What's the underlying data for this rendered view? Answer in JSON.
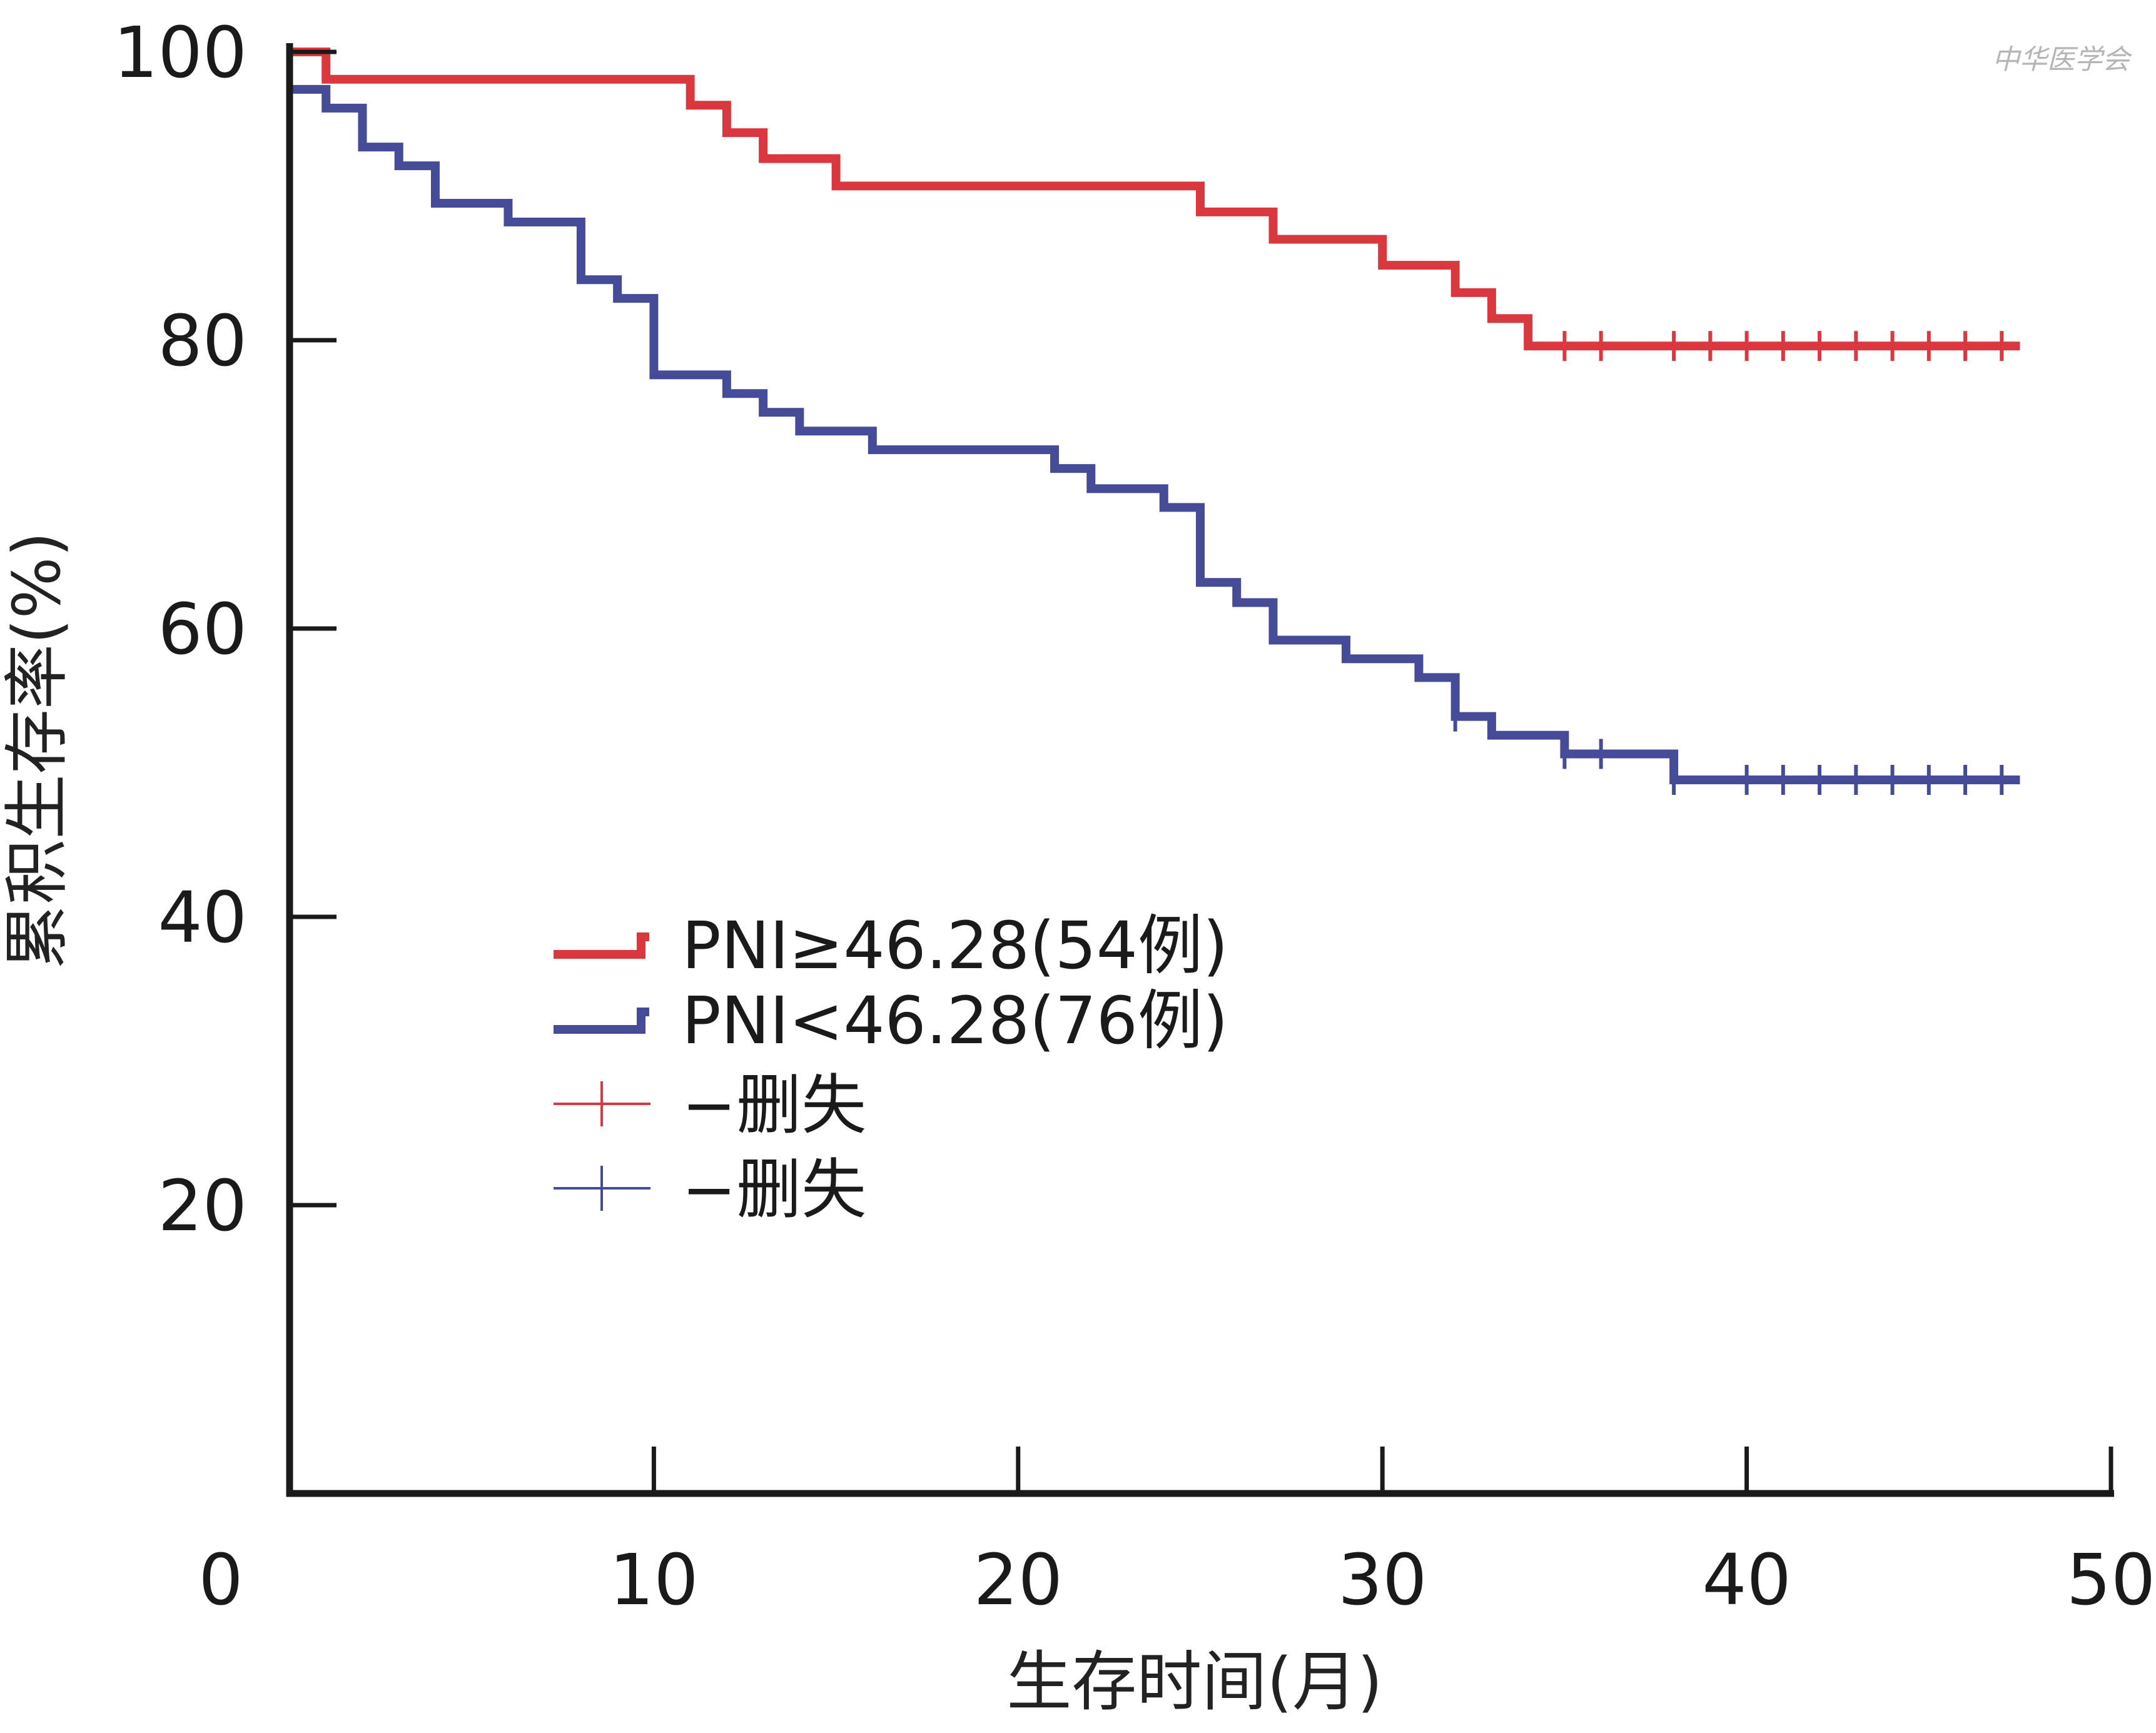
{
  "chart_data": {
    "type": "line",
    "subtype": "kaplan-meier-step",
    "ylabel": "累积生存率(%)",
    "xlabel": "生存时间(月)",
    "xlim": [
      0,
      50
    ],
    "ylim": [
      0,
      100
    ],
    "x_ticks": [
      0,
      10,
      20,
      30,
      40,
      50
    ],
    "y_ticks": [
      20,
      40,
      60,
      80,
      100
    ],
    "grid": false,
    "legend_position": "center-left",
    "watermark": "中华医学会",
    "series": [
      {
        "name": "PNI≥46.28(54例)",
        "color": "#d9383f",
        "steps": [
          [
            0,
            100
          ],
          [
            1,
            98.1
          ],
          [
            11,
            96.3
          ],
          [
            12,
            94.4
          ],
          [
            13,
            92.6
          ],
          [
            15,
            90.7
          ],
          [
            25,
            88.9
          ],
          [
            27,
            87.0
          ],
          [
            30,
            85.2
          ],
          [
            32,
            83.3
          ],
          [
            33,
            81.5
          ],
          [
            34,
            79.6
          ],
          [
            47.5,
            79.6
          ]
        ],
        "censored": [
          35,
          36,
          38,
          39,
          40,
          41,
          42,
          43,
          44,
          45,
          46,
          47
        ]
      },
      {
        "name": "PNI<46.28(76例)",
        "color": "#454b97",
        "steps": [
          [
            0,
            97.4
          ],
          [
            1,
            96.1
          ],
          [
            2,
            93.4
          ],
          [
            3,
            92.1
          ],
          [
            4,
            89.5
          ],
          [
            6,
            88.2
          ],
          [
            8,
            84.2
          ],
          [
            9,
            82.9
          ],
          [
            10,
            77.6
          ],
          [
            12,
            76.3
          ],
          [
            13,
            75.0
          ],
          [
            14,
            73.7
          ],
          [
            16,
            72.4
          ],
          [
            21,
            71.1
          ],
          [
            22,
            69.7
          ],
          [
            24,
            68.4
          ],
          [
            25,
            63.2
          ],
          [
            26,
            61.8
          ],
          [
            27,
            59.2
          ],
          [
            29,
            57.9
          ],
          [
            31,
            56.6
          ],
          [
            32,
            53.9
          ],
          [
            33,
            52.6
          ],
          [
            35,
            51.3
          ],
          [
            38,
            49.5
          ],
          [
            47.5,
            49.5
          ]
        ],
        "censored": [
          32,
          35,
          36,
          38,
          40,
          41,
          42,
          43,
          44,
          45,
          46,
          47
        ]
      }
    ],
    "legend": {
      "entries": [
        {
          "label": "PNI≥46.28(54例)",
          "series": 0,
          "kind": "line"
        },
        {
          "label": "PNI<46.28(76例)",
          "series": 1,
          "kind": "line"
        },
        {
          "label": "−删失",
          "series": 0,
          "kind": "censor"
        },
        {
          "label": "−删失",
          "series": 1,
          "kind": "censor"
        }
      ]
    }
  }
}
